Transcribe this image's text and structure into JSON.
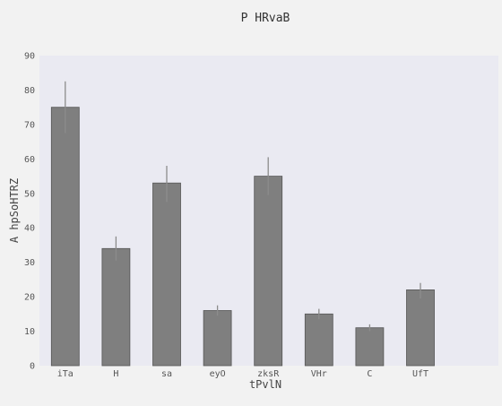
{
  "chart_data": {
    "type": "bar",
    "title": "P HRvaB",
    "xlabel": "tPvlN",
    "ylabel": "A hpSoHTRZ",
    "categories": [
      "iTa",
      "H",
      "sa",
      "eyO",
      "zksR",
      "VHr",
      "C",
      "UfT"
    ],
    "values": [
      75,
      34,
      53,
      16,
      55,
      15,
      11,
      22
    ],
    "error_low": [
      67.5,
      30.5,
      47.5,
      14.5,
      49.5,
      13.5,
      10,
      19.5
    ],
    "error_high": [
      82.5,
      37.5,
      58,
      17.5,
      60.5,
      16.5,
      12,
      24
    ],
    "ylim": [
      0,
      90
    ],
    "yticks": [
      0,
      10,
      20,
      30,
      40,
      50,
      60,
      70,
      80,
      90
    ],
    "grid": false,
    "legend": "none",
    "colors": {
      "bar": "#7f7f7f",
      "bar_edge": "#555555",
      "error": "#8c8c8c",
      "plot_bg": "#eaeaf2",
      "page_bg": "#f2f2f2"
    }
  }
}
